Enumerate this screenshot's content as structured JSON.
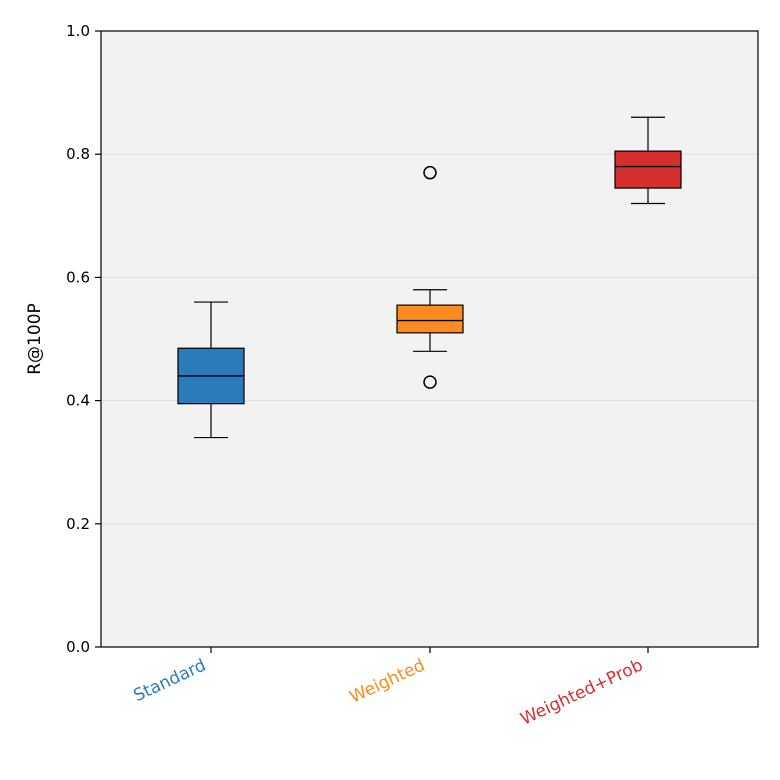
{
  "chart_data": {
    "type": "box",
    "title": "",
    "xlabel": "",
    "ylabel": "R@100P",
    "ylim": [
      0,
      1.0
    ],
    "yticks": [
      0.0,
      0.2,
      0.4,
      0.6,
      0.8,
      1.0
    ],
    "ytick_labels": [
      "0.0",
      "0.2",
      "0.4",
      "0.6",
      "0.8",
      "1.0"
    ],
    "grid": "horizontal",
    "background": "#f2f2f2",
    "categories": [
      "Standard",
      "Weighted",
      "Weighted+Prob"
    ],
    "series": [
      {
        "category": "Standard",
        "color": "#2b7bba",
        "whisker_low": 0.34,
        "q1": 0.395,
        "median": 0.44,
        "q3": 0.485,
        "whisker_high": 0.56,
        "outliers": []
      },
      {
        "category": "Weighted",
        "color": "#ff8a1f",
        "whisker_low": 0.48,
        "q1": 0.51,
        "median": 0.53,
        "q3": 0.555,
        "whisker_high": 0.58,
        "outliers": [
          0.77,
          0.43
        ]
      },
      {
        "category": "Weighted+Prob",
        "color": "#d62f2f",
        "whisker_low": 0.72,
        "q1": 0.745,
        "median": 0.78,
        "q3": 0.805,
        "whisker_high": 0.86,
        "outliers": []
      }
    ]
  }
}
